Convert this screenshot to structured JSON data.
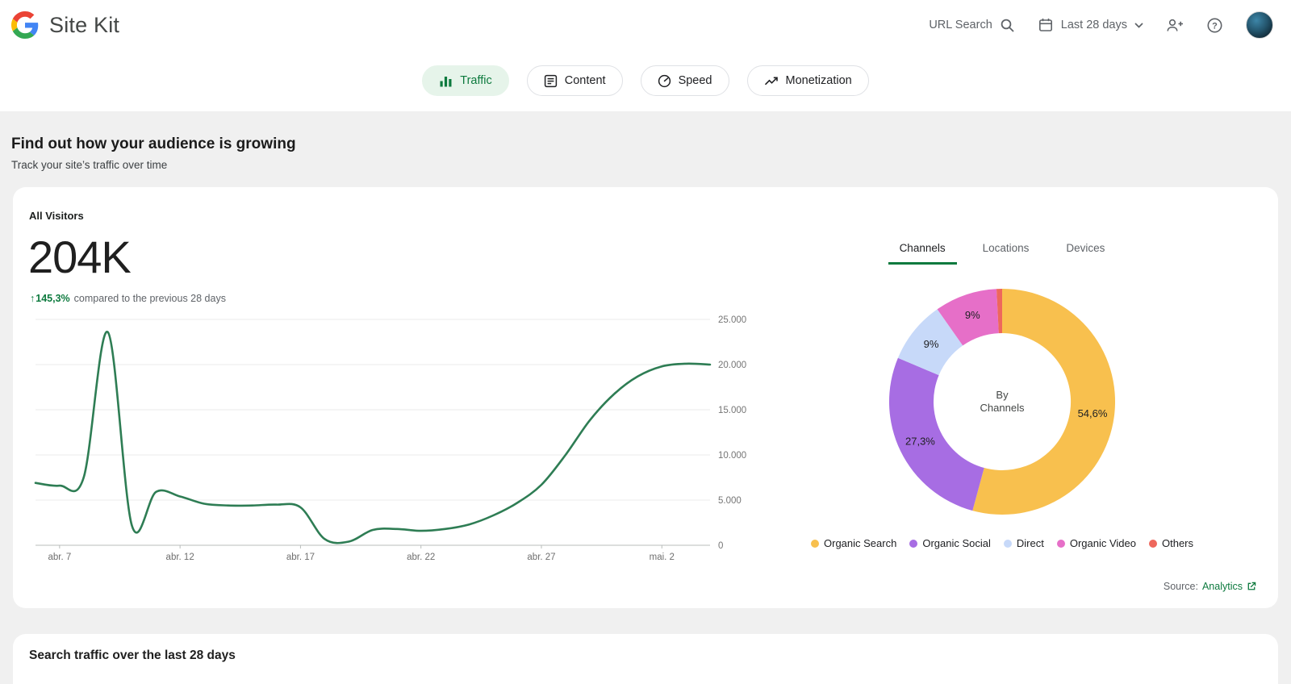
{
  "header": {
    "brand": "Site Kit",
    "url_search_label": "URL Search",
    "date_range_label": "Last 28 days",
    "icons": [
      "search-icon",
      "calendar-icon",
      "chevron-down-icon",
      "person-add-icon",
      "help-icon",
      "avatar"
    ]
  },
  "nav": {
    "tabs": [
      {
        "label": "Traffic",
        "active": true
      },
      {
        "label": "Content",
        "active": false
      },
      {
        "label": "Speed",
        "active": false
      },
      {
        "label": "Monetization",
        "active": false
      }
    ]
  },
  "section": {
    "title": "Find out how your audience is growing",
    "subtitle": "Track your site’s traffic over time"
  },
  "visitors": {
    "metric_label": "All Visitors",
    "metric_value": "204K",
    "change_arrow": "↑",
    "change_percent": "145,3%",
    "change_text": "compared to the previous 28 days",
    "tabs": [
      {
        "label": "Channels",
        "active": true
      },
      {
        "label": "Locations",
        "active": false
      },
      {
        "label": "Devices",
        "active": false
      }
    ],
    "source_label": "Source:",
    "source_link": "Analytics"
  },
  "search_section": {
    "title": "Search traffic over the last 28 days"
  },
  "colors": {
    "accent_green": "#0d7a3e",
    "pill_active_bg": "#e6f4ea",
    "band_gray": "#f0f0f0"
  },
  "chart_data": [
    {
      "type": "line",
      "title": "All Visitors over the last 28 days",
      "x": [
        "abr. 6",
        "abr. 7",
        "abr. 8",
        "abr. 9",
        "abr. 10",
        "abr. 11",
        "abr. 12",
        "abr. 13",
        "abr. 14",
        "abr. 15",
        "abr. 16",
        "abr. 17",
        "abr. 18",
        "abr. 19",
        "abr. 20",
        "abr. 21",
        "abr. 22",
        "abr. 23",
        "abr. 24",
        "abr. 25",
        "abr. 26",
        "abr. 27",
        "abr. 28",
        "abr. 29",
        "abr. 30",
        "mai. 1",
        "mai. 2",
        "mai. 3",
        "mai. 4"
      ],
      "values": [
        6900,
        6600,
        7500,
        23600,
        2200,
        5900,
        5400,
        4600,
        4400,
        4400,
        4500,
        4200,
        700,
        400,
        1700,
        1800,
        1600,
        1800,
        2300,
        3300,
        4700,
        6700,
        10000,
        13800,
        16700,
        18700,
        19800,
        20100,
        20000
      ],
      "ylim": [
        0,
        25000
      ],
      "yticks": [
        {
          "value": 25000,
          "label": "25.000"
        },
        {
          "value": 20000,
          "label": "20.000"
        },
        {
          "value": 15000,
          "label": "15.000"
        },
        {
          "value": 10000,
          "label": "10.000"
        },
        {
          "value": 5000,
          "label": "5.000"
        },
        {
          "value": 0,
          "label": "0"
        }
      ],
      "xtick_indices": [
        1,
        6,
        11,
        16,
        21,
        26
      ],
      "line_color": "#2e7d54",
      "grid": true,
      "legend_position": "none"
    },
    {
      "type": "pie",
      "title": "By Channels",
      "center_label": [
        "By",
        "Channels"
      ],
      "segments": [
        {
          "label": "Organic Search",
          "value": 54.6,
          "display": "54,6%",
          "color": "#f8c04e"
        },
        {
          "label": "Organic Social",
          "value": 27.3,
          "display": "27,3%",
          "color": "#a76de3"
        },
        {
          "label": "Direct",
          "value": 9.0,
          "display": "9%",
          "color": "#c7d9f9"
        },
        {
          "label": "Organic Video",
          "value": 9.0,
          "display": "9%",
          "color": "#e66fc8"
        },
        {
          "label": "Others",
          "value": 0.8,
          "display": "",
          "color": "#ee675c"
        }
      ],
      "legend_position": "bottom"
    }
  ]
}
